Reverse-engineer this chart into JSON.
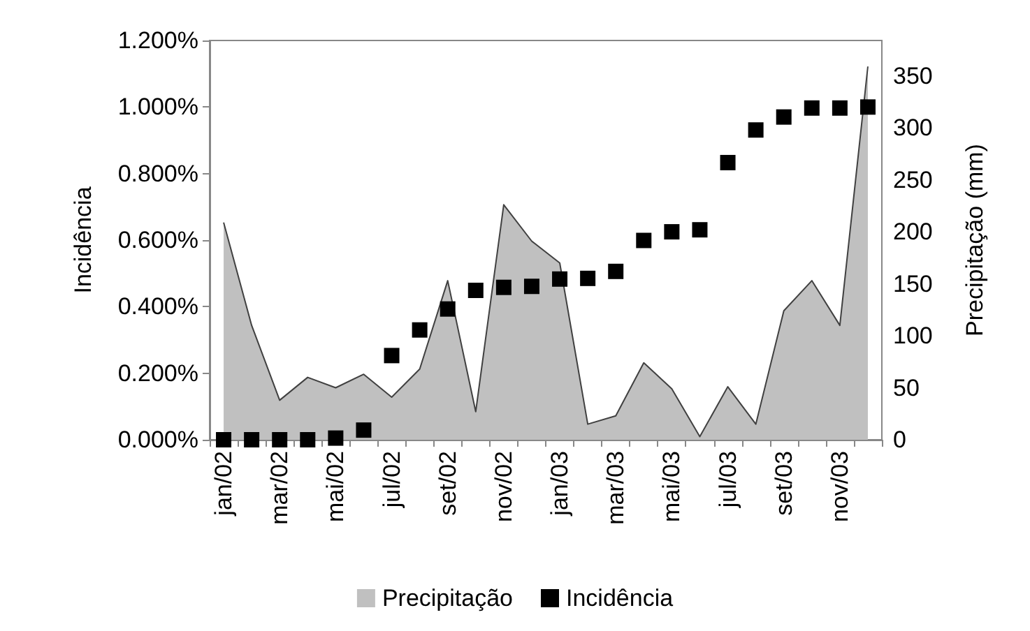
{
  "chart_data": {
    "type": "area",
    "ylabel": "Incidência",
    "y2label": "Precipitação (mm)",
    "categories": [
      "jan/02",
      null,
      "mar/02",
      null,
      "mai/02",
      null,
      "jul/02",
      null,
      "set/02",
      null,
      "nov/02",
      null,
      "jan/03",
      null,
      "mar/03",
      null,
      "mai/03",
      null,
      "jul/03",
      null,
      "set/03",
      null,
      "nov/03",
      null
    ],
    "series": [
      {
        "name": "Precipitação",
        "axis": "y2",
        "color": "#c0c0c0",
        "values": [
          209,
          110,
          38,
          60,
          50,
          63,
          41,
          68,
          153,
          27,
          226,
          191,
          170,
          15,
          23,
          74,
          49,
          3,
          51,
          15,
          124,
          153,
          110,
          359
        ]
      },
      {
        "name": "Incidência",
        "type": "scatter",
        "marker": "square",
        "color": "#000000",
        "values": [
          0,
          0,
          0,
          0,
          0.005,
          0.029,
          0.253,
          0.33,
          0.393,
          0.449,
          0.458,
          0.461,
          0.483,
          0.485,
          0.506,
          0.599,
          0.625,
          0.631,
          0.833,
          0.931,
          0.97,
          0.997,
          0.997,
          1.0
        ]
      }
    ],
    "ylim": [
      0,
      1.2
    ],
    "yticks": [
      {
        "value": 0,
        "label": "0.000%"
      },
      {
        "value": 0.2,
        "label": "0.200%"
      },
      {
        "value": 0.4,
        "label": "0.400%"
      },
      {
        "value": 0.6,
        "label": "0.600%"
      },
      {
        "value": 0.8,
        "label": "0.800%"
      },
      {
        "value": 1.0,
        "label": "1.000%"
      },
      {
        "value": 1.2,
        "label": "1.200%"
      }
    ],
    "y2lim": [
      0,
      384
    ],
    "y2ticks": [
      0,
      50,
      100,
      150,
      200,
      250,
      300,
      350
    ],
    "legend": "bottom",
    "grid": false
  }
}
